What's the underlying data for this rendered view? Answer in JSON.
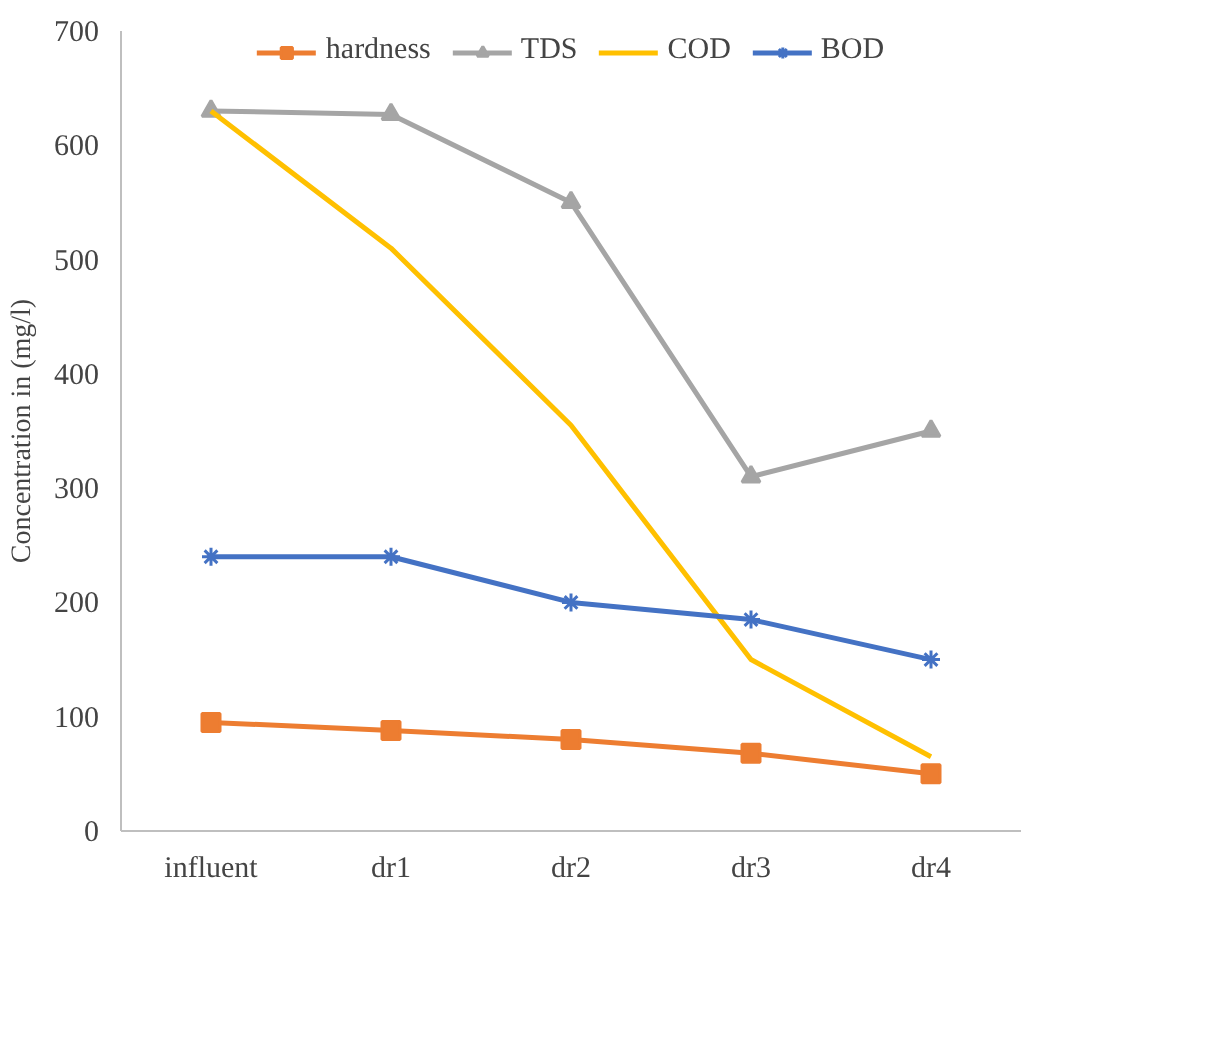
{
  "chart_data": {
    "type": "line",
    "ylabel": "Concentration in (mg/l)",
    "categories": [
      "influent",
      "dr1",
      "dr2",
      "dr3",
      "dr4"
    ],
    "series": [
      {
        "name": "hardness",
        "color": "#ed7d31",
        "marker": "square",
        "values": [
          95,
          88,
          80,
          68,
          50
        ]
      },
      {
        "name": "TDS",
        "color": "#a5a5a5",
        "marker": "triangle",
        "values": [
          630,
          627,
          550,
          310,
          350
        ]
      },
      {
        "name": "COD",
        "color": "#ffc000",
        "marker": "none",
        "values": [
          630,
          510,
          355,
          150,
          65
        ]
      },
      {
        "name": "BOD",
        "color": "#4472c4",
        "marker": "cross",
        "values": [
          240,
          240,
          200,
          185,
          150
        ]
      }
    ],
    "ylim": [
      0,
      700
    ],
    "yticks": [
      0,
      100,
      200,
      300,
      400,
      500,
      600,
      700
    ],
    "grid": false,
    "legend": "top"
  }
}
